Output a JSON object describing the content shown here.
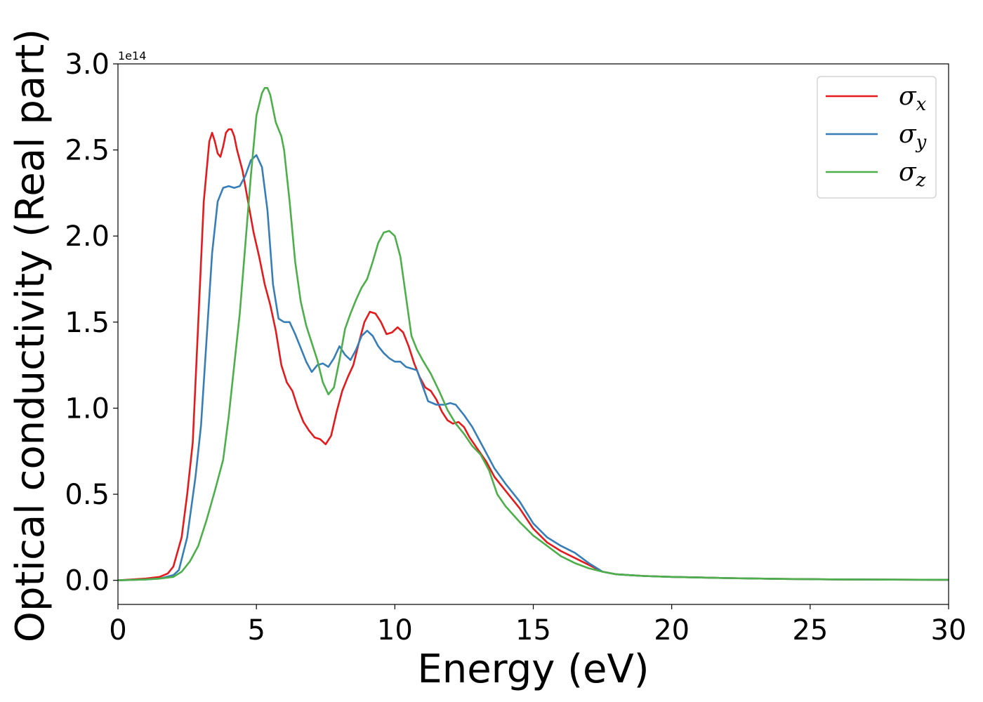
{
  "chart_data": {
    "type": "line",
    "xlabel": "Energy (eV)",
    "ylabel": "Optical conductivity (Real part)",
    "y_offset_label": "1e14",
    "xlim": [
      0,
      30
    ],
    "ylim": [
      -0.14,
      3.0
    ],
    "xticks": [
      0,
      5,
      10,
      15,
      20,
      25,
      30
    ],
    "yticks": [
      0.0,
      0.5,
      1.0,
      1.5,
      2.0,
      2.5,
      3.0
    ],
    "xtick_labels": [
      "0",
      "5",
      "10",
      "15",
      "20",
      "25",
      "30"
    ],
    "ytick_labels": [
      "0.0",
      "0.5",
      "1.0",
      "1.5",
      "2.0",
      "2.5",
      "3.0"
    ],
    "grid": false,
    "legend_position": "top-right",
    "series": [
      {
        "name": "σx",
        "symbol": "σ",
        "subscript": "x",
        "color": "#e41a1c",
        "x": [
          0,
          1,
          1.5,
          1.8,
          2,
          2.3,
          2.5,
          2.7,
          2.9,
          3.1,
          3.3,
          3.4,
          3.5,
          3.6,
          3.7,
          3.8,
          3.9,
          4.0,
          4.1,
          4.2,
          4.3,
          4.5,
          4.7,
          4.9,
          5.1,
          5.3,
          5.5,
          5.7,
          5.9,
          6.1,
          6.3,
          6.5,
          6.7,
          6.9,
          7.1,
          7.3,
          7.5,
          7.7,
          7.9,
          8.1,
          8.3,
          8.5,
          8.7,
          8.9,
          9.1,
          9.3,
          9.5,
          9.7,
          9.9,
          10.1,
          10.3,
          10.5,
          10.7,
          10.9,
          11.1,
          11.3,
          11.5,
          11.7,
          11.9,
          12.1,
          12.3,
          12.5,
          12.7,
          13.0,
          13.3,
          13.6,
          14.0,
          14.5,
          15.0,
          15.5,
          16.0,
          16.5,
          17.0,
          17.5,
          18.0,
          18.5,
          19.0,
          20,
          22,
          24,
          26,
          28,
          30
        ],
        "y": [
          0.0,
          0.01,
          0.02,
          0.04,
          0.08,
          0.25,
          0.5,
          0.8,
          1.5,
          2.2,
          2.55,
          2.6,
          2.55,
          2.48,
          2.46,
          2.52,
          2.6,
          2.62,
          2.62,
          2.58,
          2.5,
          2.38,
          2.2,
          2.02,
          1.88,
          1.72,
          1.6,
          1.45,
          1.25,
          1.15,
          1.1,
          1.0,
          0.92,
          0.87,
          0.83,
          0.82,
          0.79,
          0.84,
          0.98,
          1.1,
          1.18,
          1.25,
          1.38,
          1.5,
          1.56,
          1.55,
          1.5,
          1.43,
          1.44,
          1.47,
          1.44,
          1.36,
          1.26,
          1.18,
          1.12,
          1.1,
          1.05,
          0.98,
          0.93,
          0.91,
          0.92,
          0.89,
          0.83,
          0.76,
          0.69,
          0.6,
          0.52,
          0.42,
          0.3,
          0.22,
          0.17,
          0.13,
          0.09,
          0.05,
          0.035,
          0.03,
          0.025,
          0.02,
          0.013,
          0.008,
          0.005,
          0.004,
          0.003
        ]
      },
      {
        "name": "σy",
        "symbol": "σ",
        "subscript": "y",
        "color": "#377eb8",
        "x": [
          0,
          1,
          1.5,
          2,
          2.2,
          2.5,
          2.8,
          3.0,
          3.2,
          3.4,
          3.6,
          3.8,
          4.0,
          4.2,
          4.4,
          4.6,
          4.8,
          5.0,
          5.2,
          5.4,
          5.6,
          5.8,
          6.0,
          6.2,
          6.4,
          6.6,
          6.8,
          7.0,
          7.2,
          7.4,
          7.6,
          7.8,
          8.0,
          8.2,
          8.4,
          8.6,
          8.8,
          9.0,
          9.2,
          9.4,
          9.6,
          9.8,
          10.0,
          10.2,
          10.4,
          10.6,
          10.8,
          11.0,
          11.2,
          11.5,
          11.8,
          12.0,
          12.2,
          12.5,
          12.8,
          13.0,
          13.3,
          13.6,
          14.0,
          14.5,
          15.0,
          15.5,
          16.0,
          16.5,
          17.0,
          17.5,
          18.0,
          19.0,
          20,
          22,
          24,
          26,
          28,
          30
        ],
        "y": [
          0.0,
          0.005,
          0.01,
          0.03,
          0.06,
          0.25,
          0.6,
          0.9,
          1.4,
          1.9,
          2.2,
          2.28,
          2.29,
          2.28,
          2.29,
          2.35,
          2.44,
          2.47,
          2.4,
          2.15,
          1.72,
          1.52,
          1.5,
          1.5,
          1.43,
          1.35,
          1.27,
          1.21,
          1.25,
          1.26,
          1.24,
          1.29,
          1.36,
          1.31,
          1.28,
          1.34,
          1.42,
          1.45,
          1.42,
          1.36,
          1.32,
          1.29,
          1.27,
          1.27,
          1.24,
          1.23,
          1.22,
          1.13,
          1.04,
          1.02,
          1.02,
          1.03,
          1.02,
          0.96,
          0.89,
          0.83,
          0.74,
          0.65,
          0.56,
          0.46,
          0.33,
          0.25,
          0.2,
          0.16,
          0.1,
          0.05,
          0.035,
          0.025,
          0.02,
          0.013,
          0.008,
          0.005,
          0.004,
          0.003
        ]
      },
      {
        "name": "σz",
        "symbol": "σ",
        "subscript": "z",
        "color": "#4daf4a",
        "x": [
          0,
          1,
          1.5,
          2,
          2.3,
          2.6,
          2.9,
          3.2,
          3.5,
          3.8,
          4.0,
          4.2,
          4.4,
          4.6,
          4.8,
          5.0,
          5.2,
          5.3,
          5.4,
          5.5,
          5.6,
          5.7,
          5.8,
          5.9,
          6.0,
          6.2,
          6.4,
          6.6,
          6.8,
          7.0,
          7.2,
          7.4,
          7.6,
          7.8,
          8.0,
          8.2,
          8.4,
          8.6,
          8.8,
          9.0,
          9.2,
          9.4,
          9.6,
          9.8,
          10.0,
          10.2,
          10.4,
          10.6,
          10.8,
          11.0,
          11.3,
          11.6,
          11.9,
          12.2,
          12.5,
          12.8,
          13.1,
          13.4,
          13.7,
          14.0,
          14.5,
          15.0,
          15.5,
          16.0,
          16.5,
          17.0,
          17.5,
          18.0,
          19.0,
          20,
          22,
          24,
          26,
          28,
          30
        ],
        "y": [
          0.0,
          0.005,
          0.01,
          0.02,
          0.05,
          0.11,
          0.2,
          0.35,
          0.52,
          0.7,
          0.95,
          1.25,
          1.55,
          1.95,
          2.35,
          2.7,
          2.83,
          2.86,
          2.86,
          2.82,
          2.74,
          2.66,
          2.62,
          2.58,
          2.5,
          2.2,
          1.85,
          1.62,
          1.48,
          1.38,
          1.28,
          1.15,
          1.08,
          1.12,
          1.28,
          1.46,
          1.55,
          1.63,
          1.7,
          1.75,
          1.85,
          1.96,
          2.02,
          2.03,
          2.0,
          1.88,
          1.65,
          1.42,
          1.34,
          1.28,
          1.2,
          1.1,
          0.99,
          0.91,
          0.85,
          0.78,
          0.73,
          0.64,
          0.5,
          0.43,
          0.34,
          0.26,
          0.2,
          0.14,
          0.1,
          0.07,
          0.05,
          0.035,
          0.025,
          0.02,
          0.013,
          0.008,
          0.005,
          0.004,
          0.003
        ]
      }
    ]
  }
}
